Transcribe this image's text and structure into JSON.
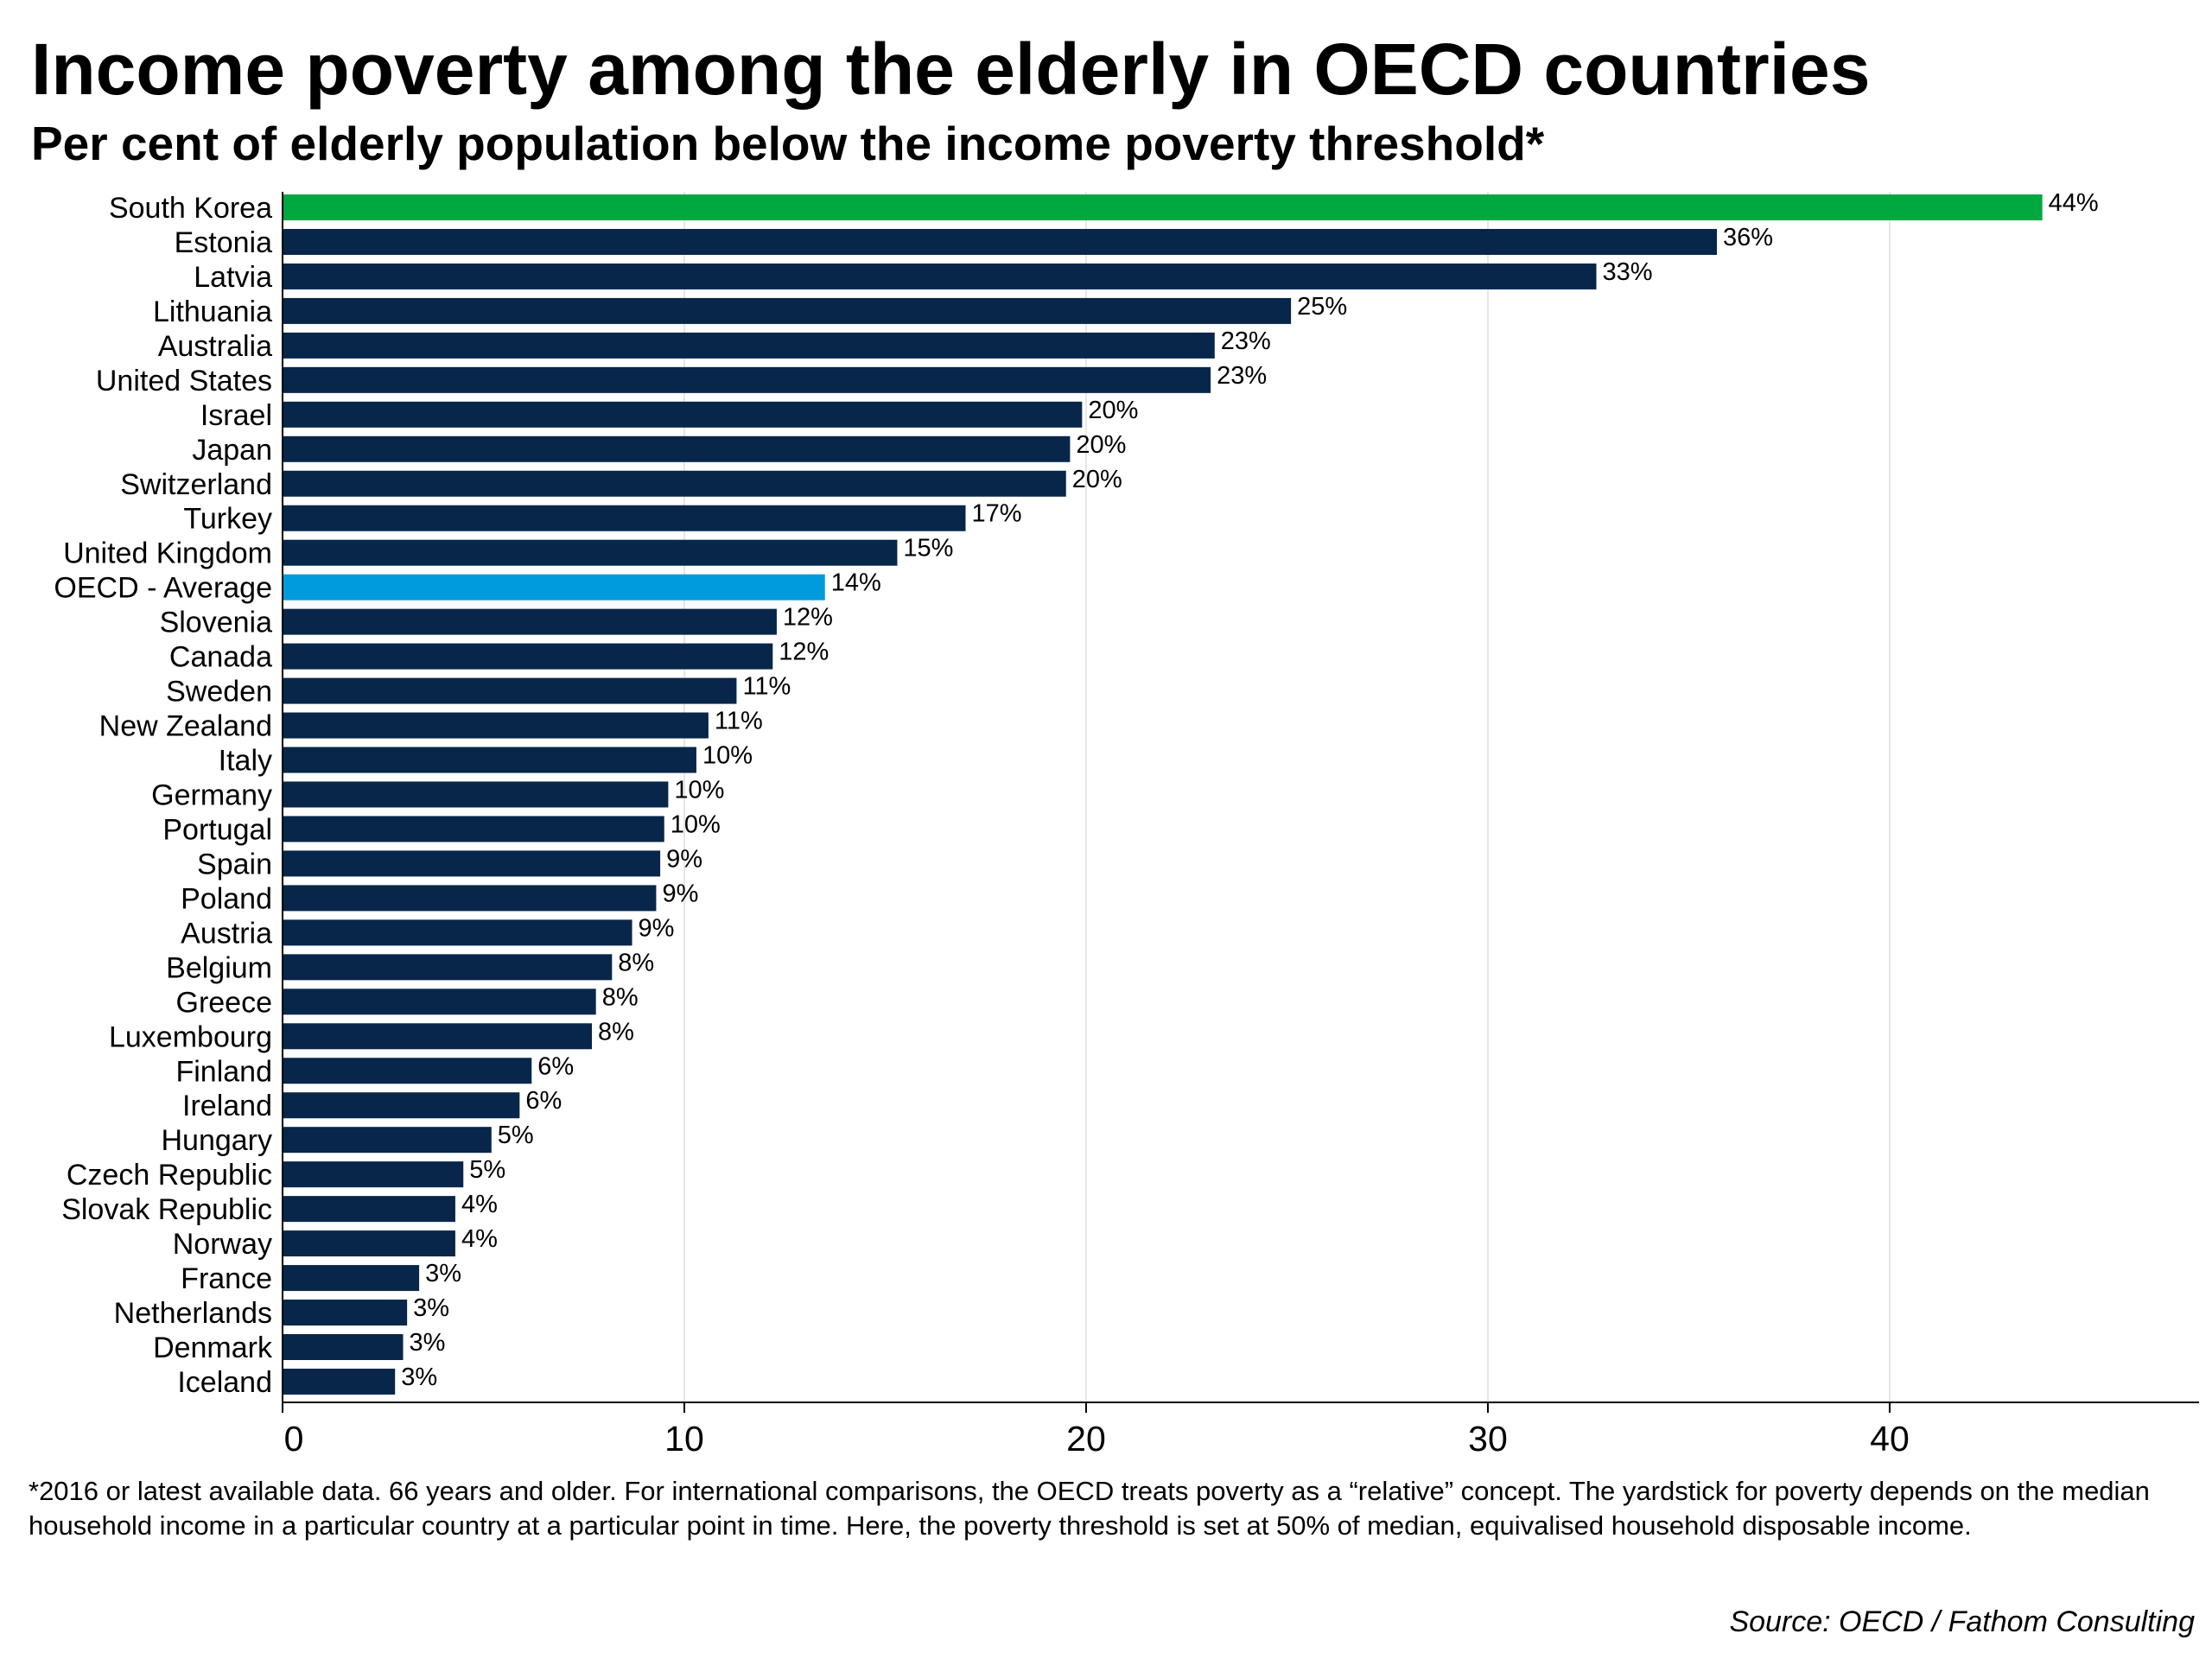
{
  "chart_data": {
    "type": "bar",
    "orientation": "horizontal",
    "title": "Income poverty among the elderly in OECD countries",
    "subtitle": "Per cent of elderly population below the income poverty threshold*",
    "categories": [
      "South Korea",
      "Estonia",
      "Latvia",
      "Lithuania",
      "Australia",
      "United States",
      "Israel",
      "Japan",
      "Switzerland",
      "Turkey",
      "United Kingdom",
      "OECD - Average",
      "Slovenia",
      "Canada",
      "Sweden",
      "New Zealand",
      "Italy",
      "Germany",
      "Portugal",
      "Spain",
      "Poland",
      "Austria",
      "Belgium",
      "Greece",
      "Luxembourg",
      "Finland",
      "Ireland",
      "Hungary",
      "Czech Republic",
      "Slovak Republic",
      "Norway",
      "France",
      "Netherlands",
      "Denmark",
      "Iceland"
    ],
    "values": [
      43.8,
      35.7,
      32.7,
      25.1,
      23.2,
      23.1,
      19.9,
      19.6,
      19.5,
      17.0,
      15.3,
      13.5,
      12.3,
      12.2,
      11.3,
      10.6,
      10.3,
      9.6,
      9.5,
      9.4,
      9.3,
      8.7,
      8.2,
      7.8,
      7.7,
      6.2,
      5.9,
      5.2,
      4.5,
      4.3,
      4.3,
      3.4,
      3.1,
      3.0,
      2.8
    ],
    "value_labels": [
      "44%",
      "36%",
      "33%",
      "25%",
      "23%",
      "23%",
      "20%",
      "20%",
      "20%",
      "17%",
      "15%",
      "14%",
      "12%",
      "12%",
      "11%",
      "11%",
      "10%",
      "10%",
      "10%",
      "9%",
      "9%",
      "9%",
      "8%",
      "8%",
      "8%",
      "6%",
      "6%",
      "5%",
      "5%",
      "4%",
      "4%",
      "3%",
      "3%",
      "3%",
      "3%"
    ],
    "highlights": {
      "South Korea": "#00a83f",
      "OECD - Average": "#009bdd"
    },
    "bar_color": "#07264a",
    "xlim": [
      0,
      47.7
    ],
    "xticks": [
      0,
      10,
      20,
      30,
      40
    ],
    "xtick_labels": [
      "0",
      "10",
      "20",
      "30",
      "40"
    ],
    "grid": "vertical",
    "xlabel": "",
    "ylabel": ""
  },
  "footnote": "*2016 or latest available data. 66 years and older. For international comparisons, the OECD treats poverty as a “relative” concept. The yardstick for poverty depends on the median household income in a particular country at a particular point in time. Here, the poverty threshold is set at 50% of median, equivalised household disposable income.",
  "source": "Source: OECD / Fathom Consulting"
}
